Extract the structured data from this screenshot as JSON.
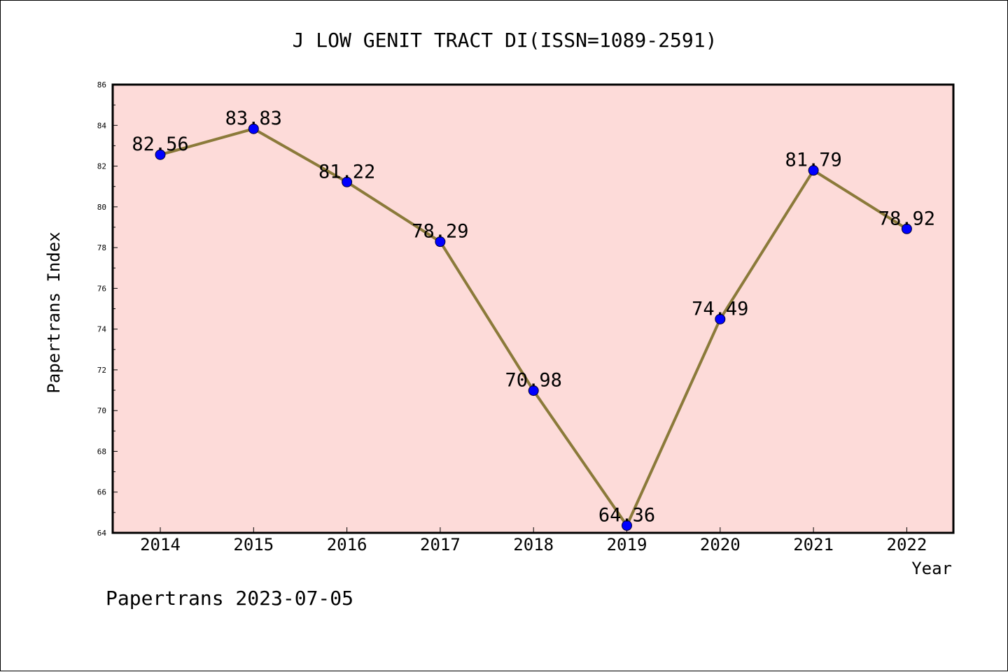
{
  "chart_data": {
    "type": "line",
    "title": "J LOW GENIT TRACT DI(ISSN=1089-2591)",
    "xlabel": "Year",
    "ylabel": "Papertrans Index",
    "categories": [
      "2014",
      "2015",
      "2016",
      "2017",
      "2018",
      "2019",
      "2020",
      "2021",
      "2022"
    ],
    "values": [
      82.56,
      83.83,
      81.22,
      78.29,
      70.98,
      64.36,
      74.49,
      81.79,
      78.92
    ],
    "data_labels": [
      "82.56",
      "83.83",
      "81.22",
      "78.29",
      "70.98",
      "64.36",
      "74.49",
      "81.79",
      "78.92"
    ],
    "ylim": [
      64,
      86
    ],
    "yticks": [
      "64",
      "66",
      "68",
      "70",
      "72",
      "74",
      "76",
      "78",
      "80",
      "82",
      "84",
      "86"
    ],
    "grid": false,
    "colors": {
      "plot_background": "#fddbd9",
      "line": "#8b7a3a",
      "marker": "#0000ff"
    }
  },
  "footer": "Papertrans 2023-07-05"
}
